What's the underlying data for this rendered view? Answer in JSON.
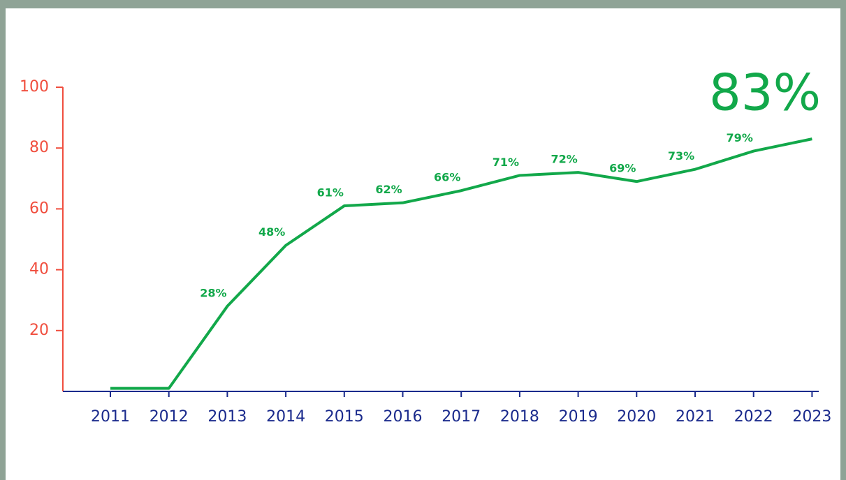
{
  "chart_data": {
    "type": "line",
    "categories": [
      "2011",
      "2012",
      "2013",
      "2014",
      "2015",
      "2016",
      "2017",
      "2018",
      "2019",
      "2020",
      "2021",
      "2022",
      "2023"
    ],
    "series": [
      {
        "color": "#12a84a",
        "values": [
          1,
          1,
          28,
          48,
          61,
          62,
          66,
          71,
          72,
          69,
          73,
          79,
          83
        ],
        "value_labels": [
          null,
          null,
          "28%",
          "48%",
          "61%",
          "62%",
          "66%",
          "71%",
          "72%",
          "69%",
          "73%",
          "79%",
          "83%"
        ]
      }
    ],
    "ylim": [
      0,
      100
    ],
    "yticks": [
      20,
      40,
      60,
      80,
      100
    ],
    "y_axis_color": "#f04e3e",
    "x_axis_color": "#1a2a8c",
    "grid": false
  }
}
